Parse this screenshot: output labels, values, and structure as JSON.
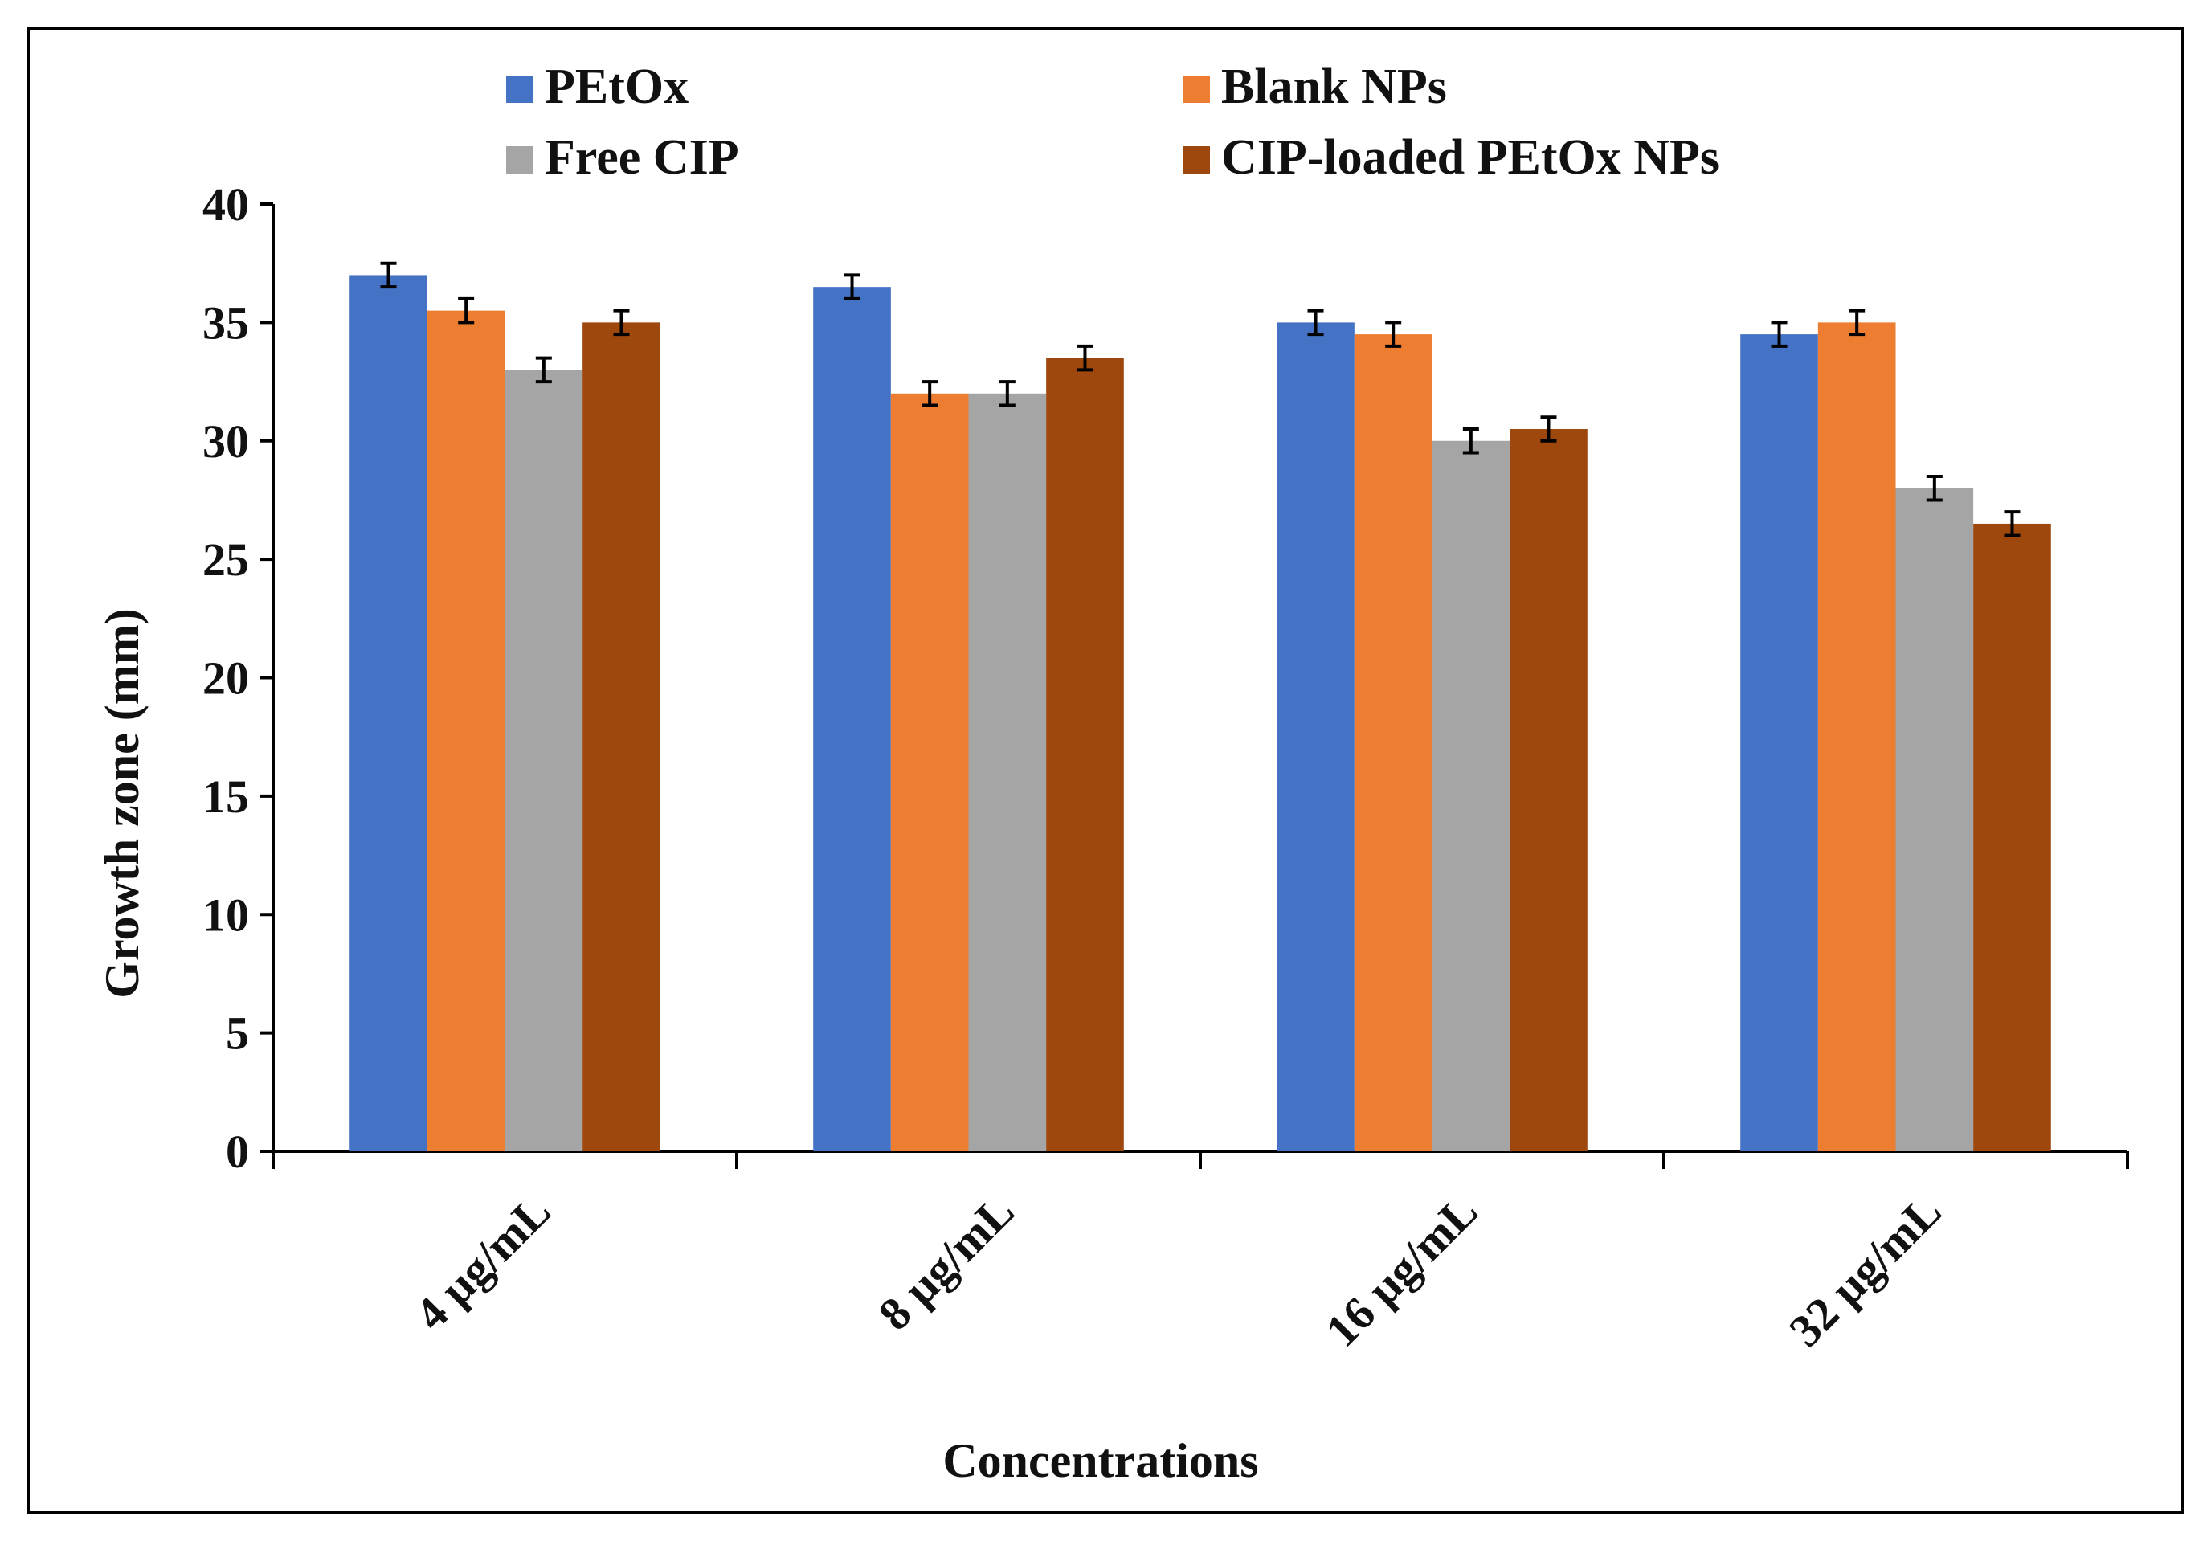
{
  "chart_data": {
    "type": "bar",
    "title": "",
    "xlabel": "Concentrations",
    "ylabel": "Growth zone (mm)",
    "ylim": [
      0,
      40
    ],
    "yticks": [
      0,
      5,
      10,
      15,
      20,
      25,
      30,
      35,
      40
    ],
    "categories": [
      "4 µg/mL",
      "8 µg/mL",
      "16 µg/mL",
      "32 µg/mL"
    ],
    "series": [
      {
        "name": "PEtOx",
        "color": "#4472C4",
        "values": [
          37,
          36.5,
          35,
          34.5
        ],
        "errors": [
          0.5,
          0.5,
          0.5,
          0.5
        ]
      },
      {
        "name": "Blank NPs",
        "color": "#ED7D31",
        "values": [
          35.5,
          32,
          34.5,
          35
        ],
        "errors": [
          0.5,
          0.5,
          0.5,
          0.5
        ]
      },
      {
        "name": "Free CIP",
        "color": "#A5A5A5",
        "values": [
          33,
          32,
          30,
          28
        ],
        "errors": [
          0.5,
          0.5,
          0.5,
          0.5
        ]
      },
      {
        "name": "CIP-loaded PEtOx NPs",
        "color": "#9E480E",
        "values": [
          35,
          33.5,
          30.5,
          26.5
        ],
        "errors": [
          0.5,
          0.5,
          0.5,
          0.5
        ]
      }
    ],
    "legend_position": "top",
    "grid": false,
    "error_bars": true
  }
}
